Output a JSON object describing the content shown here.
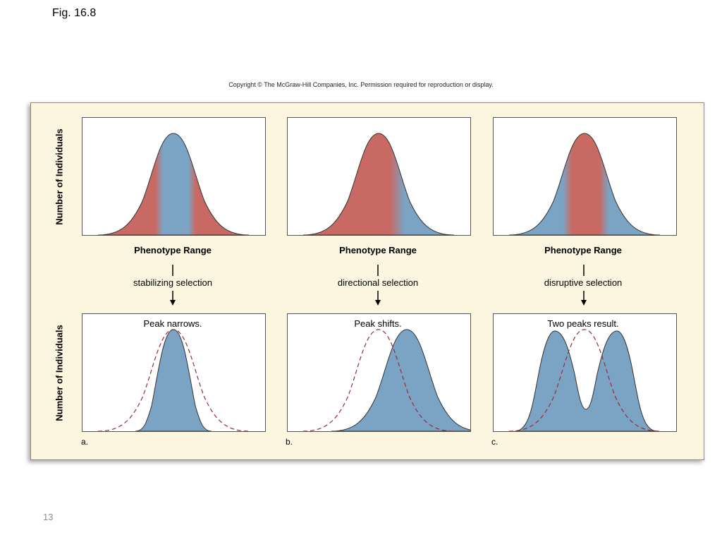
{
  "slide": {
    "title": "Fig. 16.8",
    "page_number": "13"
  },
  "figure": {
    "copyright": "Copyright © The McGraw-Hill Companies, Inc. Permission required for reproduction or display.",
    "y_axis_label": "Number of Individuals",
    "x_axis_label": "Phenotype Range",
    "colors": {
      "selected_against": "#c86a63",
      "favored": "#7ba3c4",
      "panel_background": "#fcf6e1",
      "original_curve": "#9b2a3a"
    },
    "panels": [
      {
        "letter": "a.",
        "selection": "stabilizing selection",
        "result": "Peak narrows."
      },
      {
        "letter": "b.",
        "selection": "directional selection",
        "result": "Peak shifts."
      },
      {
        "letter": "c.",
        "selection": "disruptive selection",
        "result": "Two peaks result."
      }
    ]
  }
}
